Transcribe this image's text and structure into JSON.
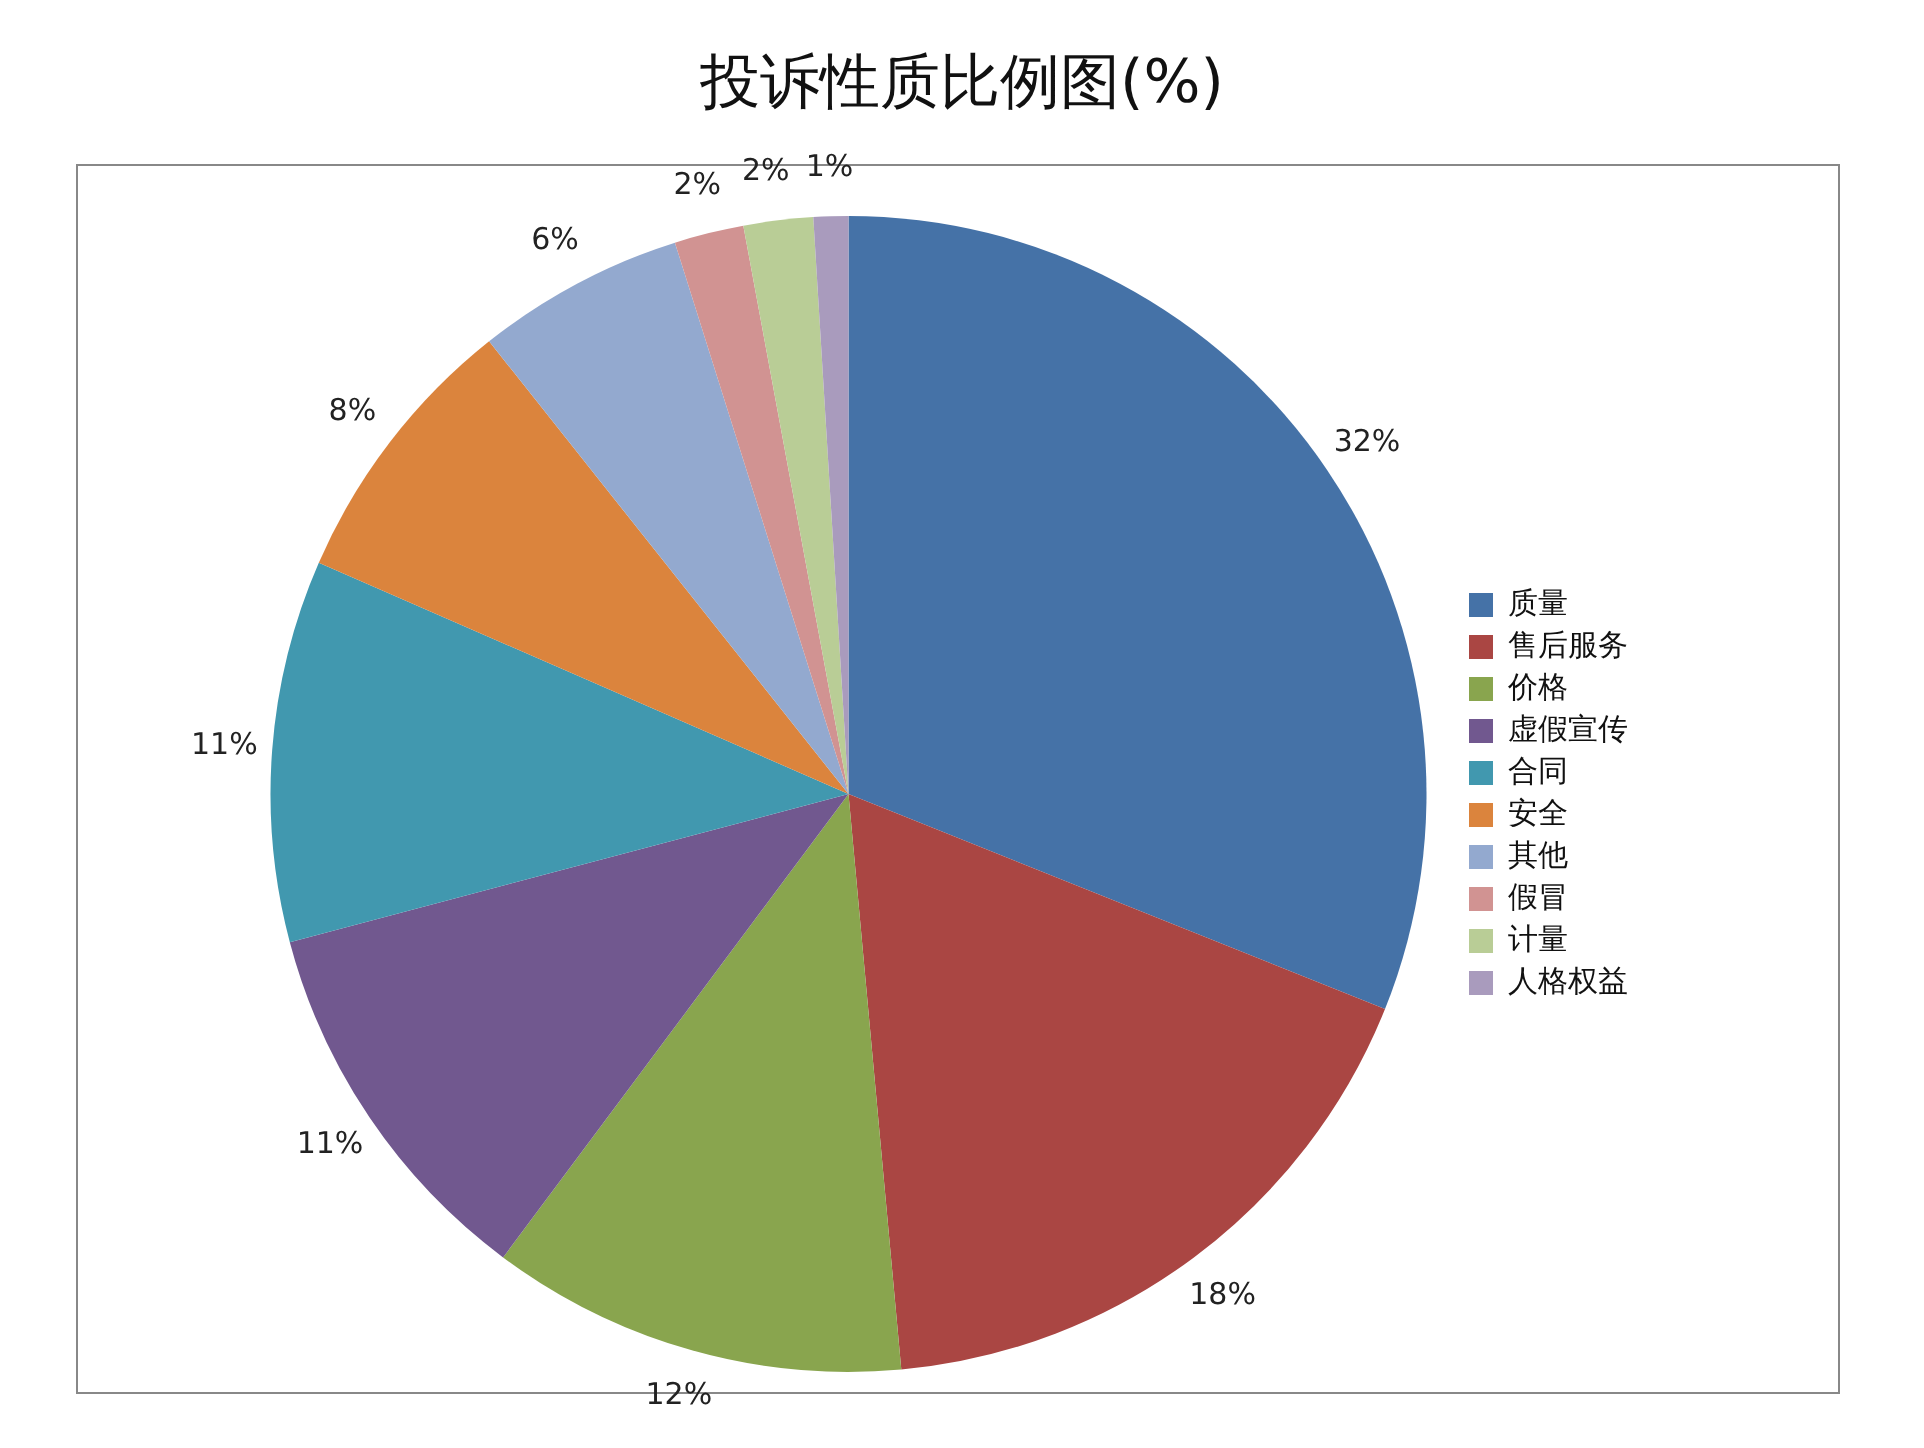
{
  "chart_data": {
    "type": "pie",
    "title": "投诉性质比例图(%)",
    "categories": [
      "质量",
      "售后服务",
      "价格",
      "虚假宣传",
      "合同",
      "安全",
      "其他",
      "假冒",
      "计量",
      "人格权益"
    ],
    "values": [
      32,
      18,
      12,
      11,
      11,
      8,
      6,
      2,
      2,
      1
    ],
    "colors": [
      "#4572a7",
      "#aa4643",
      "#89a54e",
      "#71588f",
      "#4198af",
      "#db843d",
      "#93a9cf",
      "#d19392",
      "#b9cd96",
      "#a99bbd"
    ],
    "value_labels": [
      "32%",
      "18%",
      "12%",
      "11%",
      "11%",
      "8%",
      "6%",
      "2%",
      "2%",
      "1%"
    ],
    "legend": "right"
  }
}
